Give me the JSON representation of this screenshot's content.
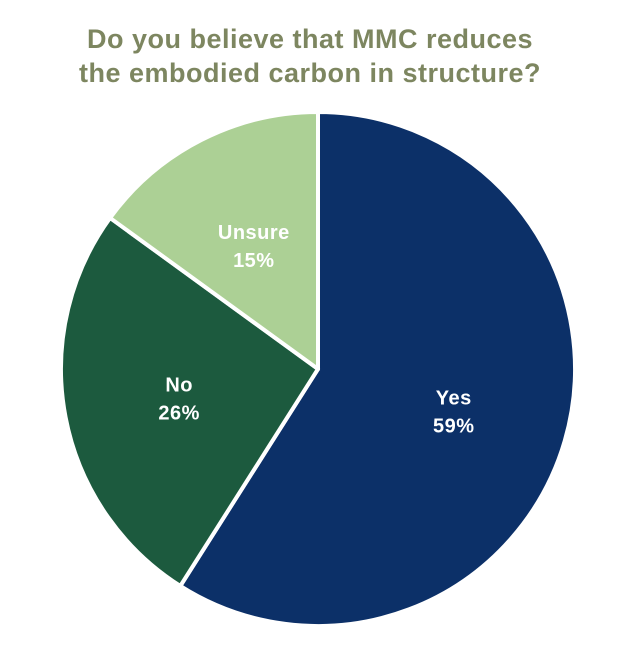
{
  "chart_data": {
    "type": "pie",
    "title_lines": [
      "Do you believe that MMC reduces",
      "the embodied carbon in structure?"
    ],
    "slices": [
      {
        "category": "Yes",
        "value": 59,
        "value_label": "59%",
        "color": "#0c3068",
        "label_color": "#ffffff"
      },
      {
        "category": "No",
        "value": 26,
        "value_label": "26%",
        "color": "#1c5a3e",
        "label_color": "#ffffff"
      },
      {
        "category": "Unsure",
        "value": 15,
        "value_label": "15%",
        "color": "#acd095",
        "label_color": "#ffffff"
      }
    ],
    "start_angle_deg": 0,
    "direction": "clockwise",
    "legend": "none",
    "grid": false
  },
  "colors": {
    "title": "#7d8660",
    "slice_separator": "#ffffff"
  }
}
